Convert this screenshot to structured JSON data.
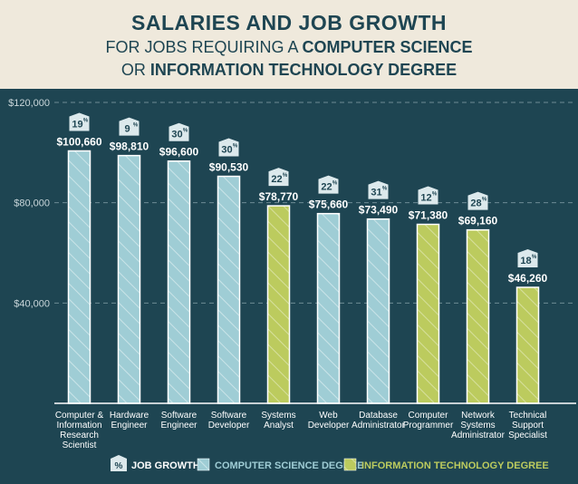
{
  "title_line1": "SALARIES AND JOB GROWTH",
  "title_line2_prefix": "FOR JOBS REQUIRING A ",
  "title_line2_bold": "COMPUTER SCIENCE",
  "title_line3_prefix": "OR ",
  "title_line3_bold": "INFORMATION TECHNOLOGY DEGREE",
  "colors": {
    "background": "#efe9dc",
    "panel": "#1e4552",
    "computer_science": "#9fcdd5",
    "information_technology": "#bccb5e",
    "growth_tag": "#dce9ec"
  },
  "legend": {
    "growth_symbol": "%",
    "growth_label": "JOB GROWTH",
    "cs_label": "COMPUTER SCIENCE DEGREE",
    "it_label": "INFORMATION TECHNOLOGY DEGREE"
  },
  "chart_data": {
    "type": "bar",
    "ylim": [
      0,
      120000
    ],
    "yticks": [
      40000,
      80000,
      120000
    ],
    "ytick_labels": [
      "$40,000",
      "$80,000",
      "$120,000"
    ],
    "grid": "horizontal dashed",
    "legend_position": "bottom",
    "categories": [
      [
        "Computer &",
        "Information",
        "Research",
        "Scientist"
      ],
      [
        "Hardware",
        "Engineer"
      ],
      [
        "Software",
        "Engineer"
      ],
      [
        "Software",
        "Developer"
      ],
      [
        "Systems",
        "Analyst"
      ],
      [
        "Web",
        "Developer"
      ],
      [
        "Database",
        "Administrator"
      ],
      [
        "Computer",
        "Programmer"
      ],
      [
        "Network",
        "Systems",
        "Administrator"
      ],
      [
        "Technical",
        "Support",
        "Specialist"
      ]
    ],
    "values": [
      100660,
      98810,
      96600,
      90530,
      78770,
      75660,
      73490,
      71380,
      69160,
      46260
    ],
    "value_labels": [
      "$100,660",
      "$98,810",
      "$96,600",
      "$90,530",
      "$78,770",
      "$75,660",
      "$73,490",
      "$71,380",
      "$69,160",
      "$46,260"
    ],
    "job_growth": [
      "19",
      "9",
      "30",
      "30",
      "22",
      "22",
      "31",
      "12",
      "28",
      "18"
    ],
    "degree": [
      "cs",
      "cs",
      "cs",
      "cs",
      "it",
      "cs",
      "cs",
      "it",
      "it",
      "it"
    ]
  }
}
